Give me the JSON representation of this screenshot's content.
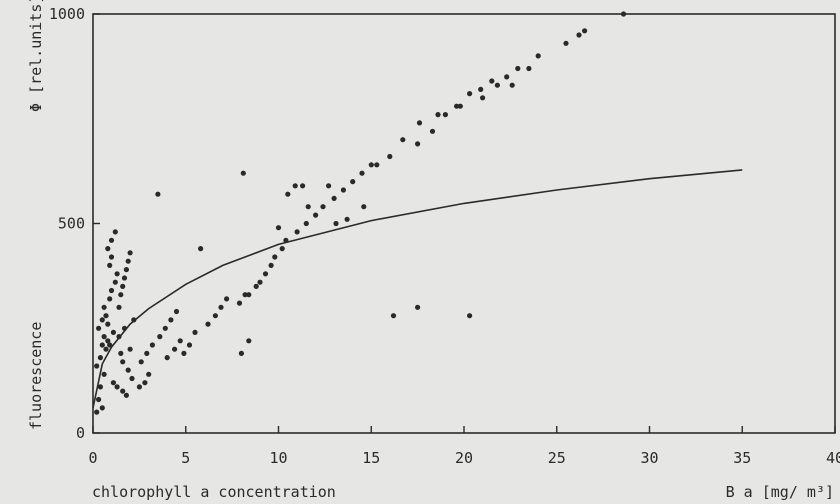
{
  "chart_data": {
    "type": "scatter",
    "title": "",
    "xlabel_left": "chlorophyll  a  concentration",
    "xlabel_right": "B a [mg/ m³]",
    "ylabel_top": "Φ [rel.units]",
    "ylabel_bottom": "fluorescence",
    "xlim": [
      0,
      40
    ],
    "ylim": [
      0,
      1000
    ],
    "x_ticks": [
      0,
      5,
      10,
      15,
      20,
      25,
      30,
      35,
      40
    ],
    "x_tick_labels": [
      "0",
      "5",
      "10",
      "15",
      "20",
      "25",
      "30",
      "35",
      "40"
    ],
    "y_ticks": [
      0,
      500,
      1000
    ],
    "y_tick_labels": [
      "0",
      "500",
      "1000"
    ],
    "grid": false,
    "colors": {
      "points": "#2a2a2a",
      "curve": "#2a2a2a",
      "axes": "#2a2a2a",
      "background": "#e6e6e4"
    },
    "series": [
      {
        "kind": "points",
        "x": [
          0.2,
          0.3,
          0.4,
          0.5,
          0.6,
          0.2,
          0.4,
          0.7,
          0.8,
          0.3,
          0.5,
          0.6,
          0.9,
          1.0,
          0.7,
          0.8,
          1.1,
          1.2,
          1.3,
          0.5,
          0.6,
          0.9,
          1.0,
          1.4,
          1.5,
          1.6,
          1.7,
          1.8,
          1.9,
          2.0,
          0.8,
          1.0,
          1.2,
          1.5,
          1.6,
          1.9,
          2.1,
          1.1,
          1.3,
          1.6,
          1.8,
          2.0,
          0.9,
          1.4,
          1.7,
          2.2,
          2.5,
          2.8,
          3.0,
          2.6,
          2.9,
          3.2,
          3.6,
          3.9,
          4.2,
          4.5,
          4.9,
          5.2,
          4.0,
          4.4,
          4.7,
          5.5,
          6.2,
          6.6,
          6.9,
          7.2,
          7.9,
          8.4,
          8.8,
          8.0,
          8.4,
          9.0,
          9.3,
          9.6,
          9.8,
          10.2,
          10.4,
          11.0,
          11.5,
          12.0,
          12.4,
          13.0,
          13.5,
          14.0,
          14.5,
          15.0,
          10.0,
          10.5,
          10.9,
          11.3,
          11.6,
          12.7,
          13.1,
          13.7,
          14.6,
          15.3,
          16.0,
          16.7,
          17.5,
          18.3,
          19.0,
          19.6,
          20.3,
          20.9,
          21.5,
          22.3,
          22.6,
          22.9,
          23.5,
          24.0,
          25.5,
          26.2,
          26.5,
          28.6,
          21.0,
          21.8,
          19.8,
          18.6,
          17.6,
          16.2,
          17.5,
          20.3,
          3.5,
          5.8,
          8.2,
          8.1
        ],
        "y": [
          50,
          80,
          110,
          60,
          140,
          160,
          180,
          200,
          220,
          250,
          270,
          300,
          320,
          340,
          280,
          260,
          240,
          360,
          380,
          210,
          230,
          400,
          420,
          300,
          330,
          350,
          370,
          390,
          410,
          430,
          440,
          460,
          480,
          190,
          170,
          150,
          130,
          120,
          110,
          100,
          90,
          200,
          210,
          230,
          250,
          270,
          110,
          120,
          140,
          170,
          190,
          210,
          230,
          250,
          270,
          290,
          190,
          210,
          180,
          200,
          220,
          240,
          260,
          280,
          300,
          320,
          310,
          330,
          350,
          190,
          220,
          360,
          380,
          400,
          420,
          440,
          460,
          480,
          500,
          520,
          540,
          560,
          580,
          600,
          620,
          640,
          490,
          570,
          590,
          590,
          540,
          590,
          500,
          510,
          540,
          640,
          660,
          700,
          690,
          720,
          760,
          780,
          810,
          820,
          840,
          850,
          830,
          870,
          870,
          900,
          930,
          950,
          960,
          1000,
          800,
          830,
          780,
          760,
          740,
          280,
          300,
          280,
          570,
          440,
          330,
          620
        ]
      },
      {
        "kind": "curve",
        "x": [
          0,
          0.5,
          1,
          2,
          3,
          5,
          7,
          10,
          15,
          20,
          25,
          30,
          35
        ],
        "y": [
          60,
          165,
          205,
          260,
          297,
          355,
          400,
          450,
          507,
          548,
          580,
          607,
          628
        ]
      }
    ]
  }
}
